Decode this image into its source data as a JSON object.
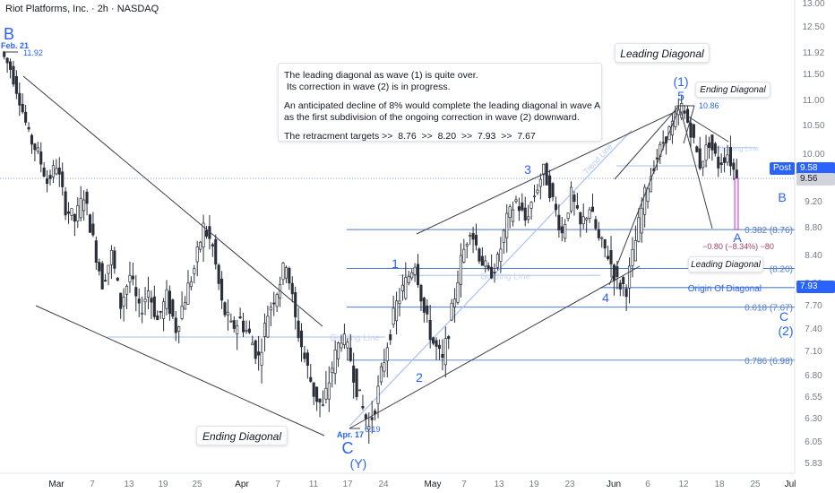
{
  "header": {
    "symbol_line": "Riot Platforms, Inc. · 2h · NASDAQ"
  },
  "note": {
    "line1": "The leading diagonal as wave (1) is quite over.",
    "line2": " Its correction in wave (2) is in progress.",
    "line3": "An anticipated decline of 8% would complete the leading diagonal in wave A",
    "line4": "as the first subdivision of the ongoing correction in wave (2) downward.",
    "line5": "The retracment targets >>  8.76  >>  8.20  >>  7.93  >>  7.67"
  },
  "callouts": {
    "leading_top": "Leading Diagonal",
    "ending_right": "Ending Diagonal",
    "leading_small": "Leading Diagonal",
    "ending_left": "Ending Diagonal"
  },
  "waves": {
    "B_top": "B",
    "C_bottom": "C",
    "Y": "(Y)",
    "w1": "1",
    "w2": "2",
    "w3": "3",
    "w4": "4",
    "w5": "5",
    "wave1_paren": "(1)",
    "A": "A",
    "B_right": "B",
    "C_right": "C",
    "wave2_paren": "(2)"
  },
  "price_labels": {
    "feb21": "Feb. 21",
    "high_1192": "11.92",
    "apr17": "Apr. 17",
    "low_619": "6.19",
    "high_1086": "10.86"
  },
  "fib": {
    "f382": "0.382 (8.76)",
    "f500": "(8.20)",
    "f618": "0.618 (7.67)",
    "f786": "0.786 (6.98)"
  },
  "lines": {
    "origin": "Origin Of Diagonal",
    "guiding": "Guiding Line",
    "trend": "Trend Line",
    "measure": "−0.80 (−8.34%) −80"
  },
  "price_axis": {
    "ticks": [
      "13.00",
      "12.50",
      "11.92",
      "11.50",
      "11.00",
      "10.50",
      "10.00",
      "9.56",
      "9.20",
      "8.80",
      "8.40",
      "8.00",
      "7.70",
      "7.40",
      "7.10",
      "6.80",
      "6.55",
      "6.30",
      "6.05",
      "5.83"
    ],
    "post_label": "Post",
    "post_value": "9.58",
    "last_value": "9.56",
    "target_value": "7.93"
  },
  "time_axis": {
    "ticks": [
      "Mar",
      "7",
      "13",
      "19",
      "25",
      "Apr",
      "7",
      "11",
      "17",
      "24",
      "May",
      "7",
      "13",
      "19",
      "23",
      "Jun",
      "6",
      "12",
      "18",
      "25",
      "Jul"
    ]
  },
  "colors": {
    "accent": "#2962ff",
    "fib_line": "#4f7ccf",
    "guide": "#b8ccf2",
    "candle": "#2a2e39",
    "measure": "#9c27b0",
    "measure_text": "#a04060"
  },
  "chart_data": {
    "type": "candlestick",
    "title": "",
    "symbol": "Riot Platforms, Inc. · 2h · NASDAQ",
    "price_scale_ticks": [
      13.0,
      12.5,
      11.92,
      11.5,
      11.0,
      10.5,
      10.0,
      9.56,
      9.2,
      8.8,
      8.4,
      8.0,
      7.7,
      7.4,
      7.1,
      6.8,
      6.55,
      6.3,
      6.05,
      5.83
    ],
    "last_price": 9.56,
    "post_market_price": 9.58,
    "wave_points": [
      {
        "label": "B",
        "date": "Feb. 21",
        "price": 11.92
      },
      {
        "label": "C (Y)",
        "date": "Apr. 17",
        "price": 6.19
      },
      {
        "label": "1",
        "price": 8.3
      },
      {
        "label": "2",
        "price": 6.95
      },
      {
        "label": "3",
        "price": 9.7
      },
      {
        "label": "4",
        "price": 7.93
      },
      {
        "label": "5 (1)",
        "price": 10.86
      }
    ],
    "fib_levels": [
      {
        "ratio": 0.382,
        "price": 8.76
      },
      {
        "ratio": 0.5,
        "price": 8.2
      },
      {
        "ratio": 0.618,
        "price": 7.67
      },
      {
        "ratio": 0.786,
        "price": 6.98
      }
    ],
    "origin_of_diagonal": 7.93,
    "projected_move": {
      "change": -0.8,
      "percent": -8.34
    },
    "price_path": [
      [
        0,
        11.92
      ],
      [
        3,
        11.6
      ],
      [
        6,
        11.0
      ],
      [
        9,
        10.3
      ],
      [
        12,
        10.0
      ],
      [
        15,
        9.5
      ],
      [
        18,
        9.8
      ],
      [
        21,
        9.1
      ],
      [
        24,
        8.9
      ],
      [
        27,
        9.3
      ],
      [
        30,
        8.6
      ],
      [
        33,
        8.0
      ],
      [
        36,
        8.4
      ],
      [
        39,
        7.7
      ],
      [
        42,
        8.1
      ],
      [
        45,
        7.6
      ],
      [
        48,
        7.9
      ],
      [
        51,
        7.5
      ],
      [
        54,
        7.8
      ],
      [
        57,
        7.4
      ],
      [
        60,
        7.8
      ],
      [
        63,
        8.2
      ],
      [
        66,
        8.8
      ],
      [
        69,
        8.5
      ],
      [
        72,
        7.7
      ],
      [
        75,
        7.4
      ],
      [
        78,
        7.5
      ],
      [
        81,
        7.3
      ],
      [
        84,
        7.0
      ],
      [
        87,
        7.6
      ],
      [
        90,
        7.9
      ],
      [
        93,
        8.3
      ],
      [
        96,
        7.5
      ],
      [
        99,
        7.0
      ],
      [
        102,
        6.6
      ],
      [
        105,
        6.4
      ],
      [
        108,
        6.9
      ],
      [
        111,
        7.3
      ],
      [
        114,
        7.0
      ],
      [
        117,
        6.5
      ],
      [
        120,
        6.19
      ],
      [
        123,
        6.6
      ],
      [
        126,
        7.2
      ],
      [
        129,
        7.7
      ],
      [
        132,
        8.0
      ],
      [
        135,
        8.3
      ],
      [
        138,
        7.6
      ],
      [
        141,
        7.2
      ],
      [
        144,
        6.95
      ],
      [
        147,
        7.6
      ],
      [
        150,
        8.3
      ],
      [
        153,
        8.8
      ],
      [
        156,
        8.4
      ],
      [
        159,
        8.1
      ],
      [
        162,
        8.3
      ],
      [
        165,
        8.9
      ],
      [
        168,
        9.2
      ],
      [
        171,
        8.9
      ],
      [
        174,
        9.3
      ],
      [
        177,
        9.7
      ],
      [
        180,
        9.2
      ],
      [
        183,
        8.7
      ],
      [
        186,
        9.3
      ],
      [
        189,
        8.8
      ],
      [
        192,
        9.1
      ],
      [
        195,
        8.6
      ],
      [
        198,
        8.4
      ],
      [
        201,
        8.0
      ],
      [
        204,
        7.93
      ],
      [
        207,
        8.6
      ],
      [
        210,
        9.3
      ],
      [
        213,
        9.8
      ],
      [
        216,
        10.2
      ],
      [
        219,
        10.5
      ],
      [
        222,
        10.86
      ],
      [
        225,
        10.4
      ],
      [
        228,
        9.8
      ],
      [
        231,
        10.2
      ],
      [
        234,
        9.8
      ],
      [
        237,
        10.0
      ],
      [
        240,
        9.56
      ]
    ]
  }
}
